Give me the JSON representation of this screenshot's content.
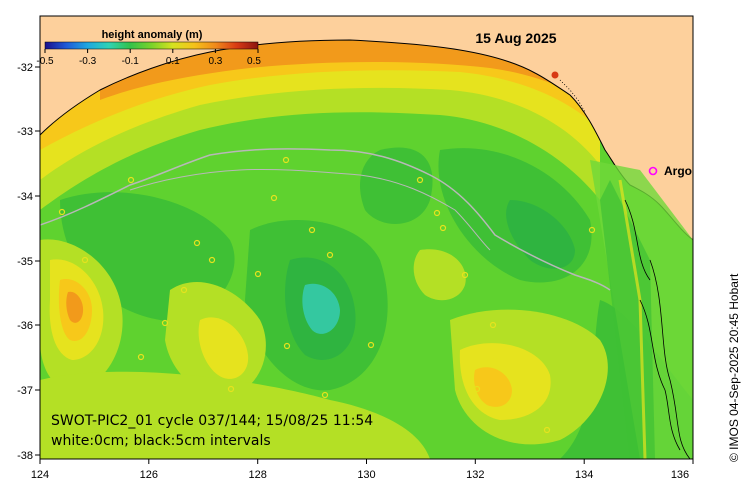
{
  "map": {
    "date_title": "15 Aug 2025",
    "info_line1": "SWOT-PIC2_01 cycle 037/144; 15/08/25 11:54",
    "info_line2": "white:0cm; black:5cm intervals",
    "credit": "© IMOS 04-Sep-2025 20:45 Hobart",
    "argo_label": "Argo",
    "x_ticks": [
      "124",
      "126",
      "128",
      "130",
      "132",
      "134",
      "136"
    ],
    "y_ticks": [
      "-32",
      "-33",
      "-34",
      "-35",
      "-36",
      "-37",
      "-38"
    ],
    "colorbar": {
      "title": "height anomaly (m)",
      "ticks": [
        "-0.5",
        "-0.3",
        "-0.1",
        "0.1",
        "0.3",
        "0.5"
      ],
      "colors": [
        "#1a0f8c",
        "#1f5ad8",
        "#1fa7e0",
        "#2fd3b4",
        "#33c24a",
        "#7ad32a",
        "#d6e21f",
        "#f5c21a",
        "#f08a1a",
        "#d83a14",
        "#8c1410"
      ]
    },
    "colors": {
      "land": "#fdd09c",
      "sea_base": "#5fd22f",
      "argo_marker": "#ff00ff"
    }
  }
}
